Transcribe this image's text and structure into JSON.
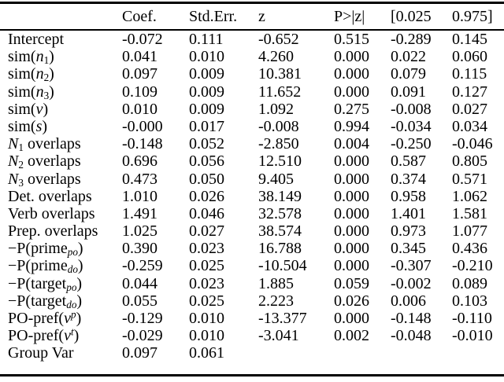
{
  "colors": {
    "background": "#ffffff",
    "text": "#000000",
    "rule": "#000000"
  },
  "table": {
    "type": "table",
    "headers": [
      "",
      "Coef.",
      "Std.Err.",
      "z",
      "P>|z|",
      "[0.025",
      "0.975]"
    ],
    "value_columns": [
      "coef",
      "stderr",
      "z",
      "p",
      "ci-low",
      "ci-high"
    ],
    "rows": [
      {
        "label": [
          {
            "t": "Intercept"
          }
        ],
        "values": [
          "-0.072",
          "0.111",
          "-0.652",
          "0.515",
          "-0.289",
          "0.145"
        ]
      },
      {
        "label": [
          {
            "t": "sim("
          },
          {
            "t": "n",
            "i": true
          },
          {
            "t": "1",
            "sub": true
          },
          {
            "t": ")"
          }
        ],
        "values": [
          "0.041",
          "0.010",
          "4.260",
          "0.000",
          "0.022",
          "0.060"
        ]
      },
      {
        "label": [
          {
            "t": "sim("
          },
          {
            "t": "n",
            "i": true
          },
          {
            "t": "2",
            "sub": true
          },
          {
            "t": ")"
          }
        ],
        "values": [
          "0.097",
          "0.009",
          "10.381",
          "0.000",
          "0.079",
          "0.115"
        ]
      },
      {
        "label": [
          {
            "t": "sim("
          },
          {
            "t": "n",
            "i": true
          },
          {
            "t": "3",
            "sub": true
          },
          {
            "t": ")"
          }
        ],
        "values": [
          "0.109",
          "0.009",
          "11.652",
          "0.000",
          "0.091",
          "0.127"
        ]
      },
      {
        "label": [
          {
            "t": "sim("
          },
          {
            "t": "v",
            "i": true
          },
          {
            "t": ")"
          }
        ],
        "values": [
          "0.010",
          "0.009",
          "1.092",
          "0.275",
          "-0.008",
          "0.027"
        ]
      },
      {
        "label": [
          {
            "t": "sim("
          },
          {
            "t": "s",
            "i": true
          },
          {
            "t": ")"
          }
        ],
        "values": [
          "-0.000",
          "0.017",
          "-0.008",
          "0.994",
          "-0.034",
          "0.034"
        ]
      },
      {
        "label": [
          {
            "t": "N",
            "i": true
          },
          {
            "t": "1",
            "sub": true
          },
          {
            "t": " overlaps"
          }
        ],
        "values": [
          "-0.148",
          "0.052",
          "-2.850",
          "0.004",
          "-0.250",
          "-0.046"
        ]
      },
      {
        "label": [
          {
            "t": "N",
            "i": true
          },
          {
            "t": "2",
            "sub": true
          },
          {
            "t": " overlaps"
          }
        ],
        "values": [
          "0.696",
          "0.056",
          "12.510",
          "0.000",
          "0.587",
          "0.805"
        ]
      },
      {
        "label": [
          {
            "t": "N",
            "i": true
          },
          {
            "t": "3",
            "sub": true
          },
          {
            "t": " overlaps"
          }
        ],
        "values": [
          "0.473",
          "0.050",
          "9.405",
          "0.000",
          "0.374",
          "0.571"
        ]
      },
      {
        "label": [
          {
            "t": "Det. overlaps"
          }
        ],
        "values": [
          "1.010",
          "0.026",
          "38.149",
          "0.000",
          "0.958",
          "1.062"
        ]
      },
      {
        "label": [
          {
            "t": "Verb overlaps"
          }
        ],
        "values": [
          "1.491",
          "0.046",
          "32.578",
          "0.000",
          "1.401",
          "1.581"
        ]
      },
      {
        "label": [
          {
            "t": "Prep. overlaps"
          }
        ],
        "values": [
          "1.025",
          "0.027",
          "38.574",
          "0.000",
          "0.973",
          "1.077"
        ]
      },
      {
        "label": [
          {
            "t": "−P(prime"
          },
          {
            "t": "po",
            "i": true,
            "sub": true
          },
          {
            "t": ")"
          }
        ],
        "values": [
          "0.390",
          "0.023",
          "16.788",
          "0.000",
          "0.345",
          "0.436"
        ]
      },
      {
        "label": [
          {
            "t": "−P(prime"
          },
          {
            "t": "do",
            "i": true,
            "sub": true
          },
          {
            "t": ")"
          }
        ],
        "values": [
          "-0.259",
          "0.025",
          "-10.504",
          "0.000",
          "-0.307",
          "-0.210"
        ]
      },
      {
        "label": [
          {
            "t": "−P(target"
          },
          {
            "t": "po",
            "i": true,
            "sub": true
          },
          {
            "t": ")"
          }
        ],
        "values": [
          "0.044",
          "0.023",
          "1.885",
          "0.059",
          "-0.002",
          "0.089"
        ]
      },
      {
        "label": [
          {
            "t": "−P(target"
          },
          {
            "t": "do",
            "i": true,
            "sub": true
          },
          {
            "t": ")"
          }
        ],
        "values": [
          "0.055",
          "0.025",
          "2.223",
          "0.026",
          "0.006",
          "0.103"
        ]
      },
      {
        "label": [
          {
            "t": "PO-pref("
          },
          {
            "t": "v",
            "i": true
          },
          {
            "t": "p",
            "i": true,
            "sup": true
          },
          {
            "t": ")"
          }
        ],
        "values": [
          "-0.129",
          "0.010",
          "-13.377",
          "0.000",
          "-0.148",
          "-0.110"
        ]
      },
      {
        "label": [
          {
            "t": "PO-pref("
          },
          {
            "t": "v",
            "i": true
          },
          {
            "t": "t",
            "i": true,
            "sup": true
          },
          {
            "t": ")"
          }
        ],
        "values": [
          "-0.029",
          "0.010",
          "-3.041",
          "0.002",
          "-0.048",
          "-0.010"
        ]
      },
      {
        "label": [
          {
            "t": "Group Var"
          }
        ],
        "values": [
          "0.097",
          "0.061",
          "",
          "",
          "",
          ""
        ]
      }
    ]
  }
}
